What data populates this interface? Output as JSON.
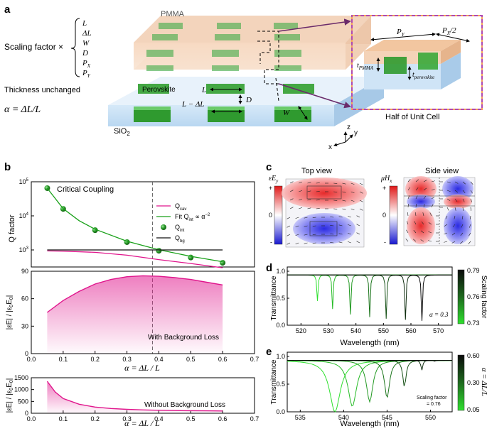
{
  "panel_a": {
    "label": "a",
    "pmma": "PMMA",
    "perovskite": "Perovskite",
    "sio2": "SiO",
    "sio2_sub": "2",
    "scaling_factor": "Scaling factor ×",
    "scaling_list": [
      "L",
      "ΔL",
      "W",
      "D",
      "P",
      "P"
    ],
    "scaling_list_subs": [
      "",
      "",
      "",
      "",
      "X",
      "Y"
    ],
    "thickness_unchanged": "Thickness unchanged",
    "alpha_def": "α = ΔL/L",
    "dim_L": "L",
    "dim_D": "D",
    "dim_L_minus_dL": "L − ΔL",
    "dim_W": "W",
    "axis_x": "x",
    "axis_y": "y",
    "axis_z": "z",
    "inset_PY": "P",
    "inset_PY_sub": "Y",
    "inset_PX2": "P",
    "inset_PX2_sub": "X",
    "inset_PX2_suffix": "/2",
    "inset_tPMMA": "t",
    "inset_tPMMA_sub": "PMMA",
    "inset_tperov": "t",
    "inset_tperov_sub": "perovskite",
    "half_unit_cell": "Half of Unit Cell"
  },
  "panel_b": {
    "label": "b",
    "critical_coupling": "Critical Coupling",
    "legend": [
      "Q",
      "Fit Q",
      "Q",
      "Q"
    ],
    "legend_subs": [
      "cav",
      "int",
      "int",
      "bg"
    ],
    "fit_suffix": " ∝ α",
    "fit_exp": "−2",
    "ylabel_top": "Q factor",
    "ylabel_mid": "|εE| / |ε",
    "ylabel_bot": "|εE| / |ε",
    "with_bg": "With Background Loss",
    "without_bg": "Without Background Loss",
    "xlabel": "α = ΔL / L"
  },
  "chart_data": [
    {
      "type": "line",
      "title": "Q factor vs α",
      "xlabel": "α = ΔL / L",
      "ylabel": "Q factor",
      "xlim": [
        0,
        0.7
      ],
      "ylim_log10": [
        2.5,
        5
      ],
      "yscale": "log",
      "yticks": [
        "10^3",
        "10^4",
        "10^5"
      ],
      "critical_alpha": 0.38,
      "series": [
        {
          "name": "Q_int",
          "x": [
            0.05,
            0.1,
            0.2,
            0.3,
            0.4,
            0.5,
            0.6
          ],
          "values": [
            65000,
            16000,
            3800,
            1700,
            950,
            600,
            420
          ],
          "style": "markers",
          "color": "#1f8a1f"
        },
        {
          "name": "Fit Q_int ∝ α^-2",
          "x": [
            0.05,
            0.1,
            0.15,
            0.2,
            0.3,
            0.4,
            0.5,
            0.6
          ],
          "values": [
            65000,
            16250,
            7220,
            4060,
            1800,
            1015,
            650,
            450
          ],
          "style": "line",
          "color": "#19a019"
        },
        {
          "name": "Q_cav",
          "x": [
            0.05,
            0.1,
            0.2,
            0.3,
            0.4,
            0.5,
            0.6
          ],
          "values": [
            935,
            920,
            850,
            700,
            520,
            400,
            300
          ],
          "style": "line",
          "color": "#e0158c"
        },
        {
          "name": "Q_bg",
          "x": [
            0.05,
            0.6
          ],
          "values": [
            1000,
            1000
          ],
          "style": "line",
          "color": "#111111"
        }
      ]
    },
    {
      "type": "area",
      "title": "With Background Loss",
      "xlabel": "α = ΔL / L",
      "ylabel": "|εE| / |ε0E0|",
      "xlim": [
        0,
        0.7
      ],
      "ylim": [
        0,
        90
      ],
      "yticks": [
        0,
        30,
        60,
        90
      ],
      "xticks": [
        0.0,
        0.1,
        0.2,
        0.3,
        0.4,
        0.5,
        0.6,
        0.7
      ],
      "x": [
        0.05,
        0.1,
        0.15,
        0.2,
        0.25,
        0.3,
        0.35,
        0.4,
        0.45,
        0.5,
        0.55,
        0.6
      ],
      "values": [
        45,
        58,
        68,
        76,
        81,
        84,
        85,
        84.5,
        83,
        81,
        78,
        75
      ],
      "color": "#e0158c"
    },
    {
      "type": "area",
      "title": "Without Background Loss",
      "xlabel": "α = ΔL / L",
      "ylabel": "|εE| / |ε0E0|",
      "xlim": [
        0,
        0.7
      ],
      "ylim": [
        0,
        1500
      ],
      "yticks": [
        0,
        500,
        1000,
        1500
      ],
      "xticks": [
        0.0,
        0.1,
        0.2,
        0.3,
        0.4,
        0.5,
        0.6,
        0.7
      ],
      "x": [
        0.05,
        0.075,
        0.1,
        0.15,
        0.2,
        0.25,
        0.3,
        0.35,
        0.4,
        0.45,
        0.5,
        0.55,
        0.6
      ],
      "values": [
        1350,
        900,
        620,
        380,
        260,
        200,
        165,
        140,
        125,
        115,
        108,
        102,
        97
      ],
      "color": "#e0158c"
    },
    {
      "type": "line",
      "title": "Transmittance vs wavelength (α = 0.3)",
      "xlabel": "Wavelength (nm)",
      "ylabel": "Transmittance",
      "xlim": [
        515,
        575
      ],
      "ylim": [
        0,
        1.0
      ],
      "xticks": [
        520,
        530,
        540,
        550,
        560,
        570
      ],
      "yticks": [
        "0.0",
        "0.5",
        "1.0"
      ],
      "annotation": "α = 0.3",
      "dip_wavelengths": [
        526,
        531.5,
        538,
        545,
        551,
        558,
        564
      ],
      "dip_depths": [
        0.45,
        0.3,
        0.2,
        0.15,
        0.12,
        0.1,
        0.08
      ],
      "colorbar": {
        "label": "Scaling factor",
        "min": 0.73,
        "mid": 0.76,
        "max": 0.79
      }
    },
    {
      "type": "line",
      "title": "Transmittance vs wavelength (scaling factor 0.76)",
      "xlabel": "Wavelength (nm)",
      "ylabel": "Transmittance",
      "xlim": [
        533.5,
        552.5
      ],
      "ylim": [
        0,
        1.0
      ],
      "xticks": [
        535,
        540,
        545,
        550
      ],
      "yticks": [
        "0.0",
        "0.5",
        "1.0"
      ],
      "annotation": "Scaling factor = 0.76",
      "dip_wavelengths": [
        539,
        541,
        543,
        545,
        547,
        549,
        550.5
      ],
      "dip_depths": [
        0.0,
        0.1,
        0.18,
        0.25,
        0.45,
        0.75,
        0.9
      ],
      "dip_widths": [
        1.5,
        1.2,
        0.9,
        0.7,
        0.45,
        0.25,
        0.12
      ],
      "colorbar": {
        "label": "α = ΔL/L",
        "min": 0.05,
        "mid": 0.3,
        "max": 0.6
      }
    }
  ],
  "panel_c": {
    "label": "c",
    "top_view": "Top view",
    "side_view": "Side view",
    "cb1_label": "εE",
    "cb1_sub": "y",
    "cb2_label": "μH",
    "cb2_sub": "x",
    "plus": "+",
    "zero": "0",
    "minus": "-"
  },
  "panel_d": {
    "label": "d",
    "cb_min": "0.73",
    "cb_mid": "0.76",
    "cb_max": "0.79",
    "cb_title": "Scaling factor",
    "annot": "α = 0.3"
  },
  "panel_e": {
    "label": "e",
    "cb_min": "0.05",
    "cb_mid": "0.30",
    "cb_max": "0.60",
    "cb_title": "α = ΔL/L",
    "annot1": "Scaling factor",
    "annot2": "= 0.76"
  }
}
